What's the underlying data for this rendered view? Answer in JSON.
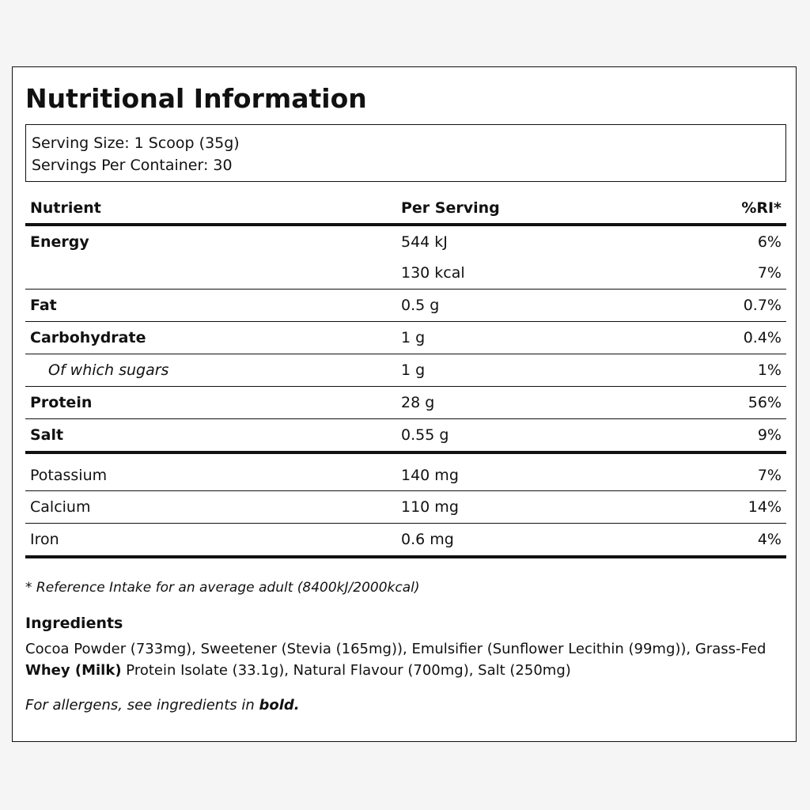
{
  "title": "Nutritional Information",
  "serving": {
    "size": "Serving Size: 1 Scoop (35g)",
    "per_container": "Servings Per Container: 30"
  },
  "table": {
    "headers": {
      "nutrient": "Nutrient",
      "per_serving": "Per Serving",
      "ri": "%RI*"
    },
    "rows": [
      {
        "nutrient": "Energy",
        "per_serving": "544 kJ",
        "ri": "6%"
      },
      {
        "nutrient": "",
        "per_serving": "130 kcal",
        "ri": "7%"
      },
      {
        "nutrient": "Fat",
        "per_serving": "0.5 g",
        "ri": "0.7%"
      },
      {
        "nutrient": "Carbohydrate",
        "per_serving": "1 g",
        "ri": "0.4%"
      },
      {
        "nutrient": "Of which sugars",
        "per_serving": "1 g",
        "ri": "1%"
      },
      {
        "nutrient": "Protein",
        "per_serving": "28 g",
        "ri": "56%"
      },
      {
        "nutrient": "Salt",
        "per_serving": "0.55 g",
        "ri": "9%"
      },
      {
        "nutrient": "Potassium",
        "per_serving": "140 mg",
        "ri": "7%"
      },
      {
        "nutrient": "Calcium",
        "per_serving": "110 mg",
        "ri": "14%"
      },
      {
        "nutrient": "Iron",
        "per_serving": "0.6 mg",
        "ri": "4%"
      }
    ]
  },
  "footnote": "* Reference Intake for an average adult (8400kJ/2000kcal)",
  "ingredients": {
    "title": "Ingredients",
    "text_before": "Cocoa Powder (733mg), Sweetener (Stevia (165mg)), Emulsifier (Sunflower Lecithin (99mg)), Grass-Fed ",
    "allergen": "Whey (Milk)",
    "text_after": " Protein Isolate (33.1g), Natural Flavour (700mg), Salt (250mg)"
  },
  "allergen_note": {
    "text": "For allergens, see ingredients in ",
    "bold": "bold."
  }
}
